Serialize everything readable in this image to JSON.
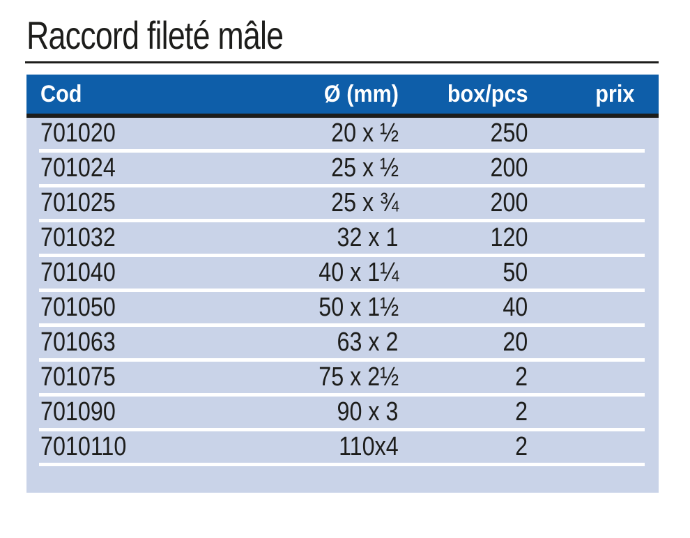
{
  "page": {
    "title": "Raccord fileté mâle"
  },
  "colors": {
    "header_bg": "#0e5ea9",
    "row_bg": "#c9d3e8",
    "separator": "#ffffff",
    "rule": "#1d1d1b",
    "header_text": "#ffffff",
    "body_text": "#1d1d1b",
    "page_bg": "#ffffff"
  },
  "table": {
    "columns": [
      {
        "key": "cod",
        "label": "Cod"
      },
      {
        "key": "diameter",
        "label": "Ø (mm)"
      },
      {
        "key": "box",
        "label": "box/pcs"
      },
      {
        "key": "prix",
        "label": "prix"
      }
    ],
    "rows": [
      {
        "cod": "701020",
        "diameter": "20 x ½",
        "box": "250",
        "prix": ""
      },
      {
        "cod": "701024",
        "diameter": "25 x ½",
        "box": "200",
        "prix": ""
      },
      {
        "cod": "701025",
        "diameter": "25 x ¾",
        "box": "200",
        "prix": ""
      },
      {
        "cod": "701032",
        "diameter": "32 x 1",
        "box": "120",
        "prix": ""
      },
      {
        "cod": "701040",
        "diameter": "40 x 1¼",
        "box": "50",
        "prix": ""
      },
      {
        "cod": "701050",
        "diameter": "50 x 1½",
        "box": "40",
        "prix": ""
      },
      {
        "cod": "701063",
        "diameter": "63 x 2",
        "box": "20",
        "prix": ""
      },
      {
        "cod": "701075",
        "diameter": "75 x 2½",
        "box": "2",
        "prix": ""
      },
      {
        "cod": "701090",
        "diameter": "90 x 3",
        "box": "2",
        "prix": ""
      },
      {
        "cod": "7010110",
        "diameter": "110x4",
        "box": "2",
        "prix": ""
      }
    ]
  }
}
